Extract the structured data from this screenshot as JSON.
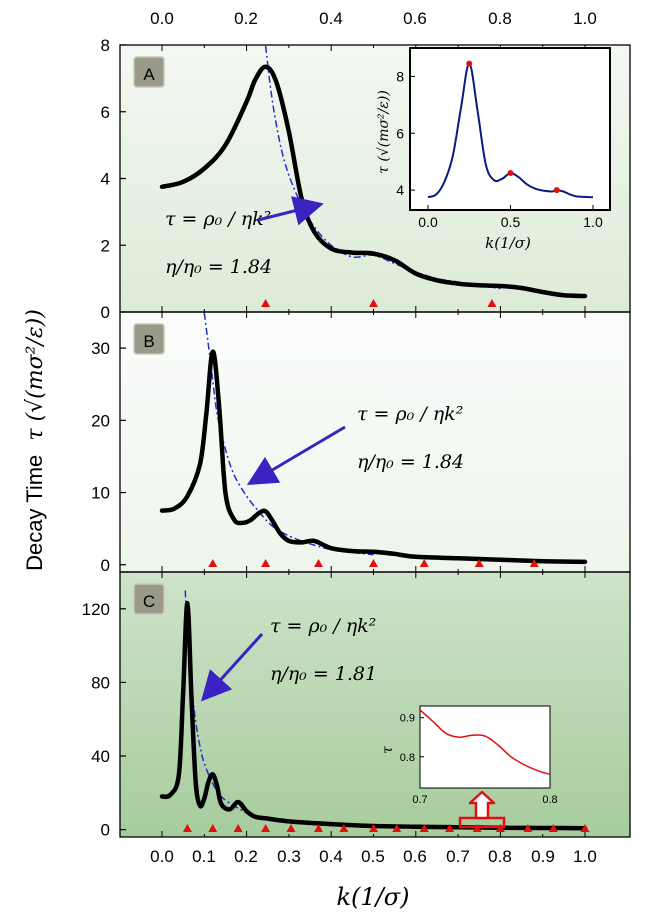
{
  "figure": {
    "ylabel": "Decay Time",
    "ylabel_math": "τ (√(mσ²/ε))",
    "xlabel": "k(1/σ)",
    "top_xticks": [
      "0.0",
      "0.2",
      "0.4",
      "0.6",
      "0.8",
      "1.0"
    ],
    "bottom_xticks": [
      "0.0",
      "0.1",
      "0.2",
      "0.3",
      "0.4",
      "0.5",
      "0.6",
      "0.7",
      "0.8",
      "0.9",
      "1.0"
    ]
  },
  "colors": {
    "curve": "#000000",
    "fit": "#1f2fd0",
    "arrow": "#3a23c0",
    "marker": "#e01010",
    "inset_curve": "#0a1a80",
    "inset_c_curve": "#e01010",
    "badge_bg": "#9a9a8a",
    "badge_text": "#f5b800",
    "panel_a_bg": "#e9f2e6",
    "panel_b_bg": "#f7faf6",
    "panel_c_bg": "#b5d4ae"
  },
  "chart_data": [
    {
      "panel": "A",
      "type": "line",
      "xlim": [
        -0.1,
        1.05
      ],
      "ylim": [
        0,
        8
      ],
      "yticks": [
        "0",
        "2",
        "4",
        "6",
        "8"
      ],
      "ytick_values": [
        0,
        2,
        4,
        6,
        8
      ],
      "series": [
        {
          "role": "curve",
          "x": [
            0.0,
            0.05,
            0.1,
            0.15,
            0.2,
            0.22,
            0.245,
            0.27,
            0.3,
            0.33,
            0.36,
            0.4,
            0.45,
            0.5,
            0.55,
            0.6,
            0.65,
            0.7,
            0.75,
            0.8,
            0.85,
            0.9,
            0.95,
            1.0
          ],
          "y": [
            3.75,
            3.9,
            4.3,
            5.0,
            6.3,
            6.95,
            7.35,
            6.9,
            5.4,
            3.4,
            2.4,
            1.9,
            1.78,
            1.75,
            1.55,
            1.15,
            0.95,
            0.85,
            0.8,
            0.78,
            0.72,
            0.6,
            0.5,
            0.48
          ]
        },
        {
          "role": "fit",
          "x": [
            0.245,
            0.26,
            0.28,
            0.3,
            0.33,
            0.36,
            0.4,
            0.45,
            0.5,
            0.55,
            0.6,
            0.65,
            0.7,
            0.75,
            0.8
          ],
          "y": [
            8.3,
            6.4,
            5.0,
            4.1,
            3.2,
            2.55,
            2.0,
            1.65,
            1.7,
            1.45,
            1.2,
            1.0,
            0.9,
            0.8,
            0.7
          ]
        }
      ],
      "markers_x": [
        0.245,
        0.5,
        0.78
      ],
      "annotation": {
        "formula": "τ = ρ₀ / ηk²",
        "ratio": "η/η₀ = 1.84"
      },
      "badge": "A",
      "inset": {
        "x": [
          0.0,
          0.05,
          0.1,
          0.15,
          0.2,
          0.25,
          0.3,
          0.35,
          0.4,
          0.45,
          0.5,
          0.55,
          0.6,
          0.65,
          0.7,
          0.75,
          0.78,
          0.82,
          0.86,
          0.9,
          0.95,
          1.0
        ],
        "y": [
          3.75,
          3.85,
          4.3,
          5.2,
          6.9,
          8.45,
          6.8,
          4.9,
          4.35,
          4.4,
          4.6,
          4.45,
          4.2,
          4.05,
          3.98,
          3.95,
          4.0,
          3.95,
          3.85,
          3.78,
          3.76,
          3.75
        ],
        "markers": [
          [
            0.25,
            8.45
          ],
          [
            0.5,
            4.6
          ],
          [
            0.78,
            4.0
          ]
        ],
        "xlim": [
          -0.1,
          1.1
        ],
        "ylim": [
          3.3,
          9.0
        ],
        "xticks": [
          "0.0",
          "0.5",
          "1.0"
        ],
        "xtick_values": [
          0,
          0.5,
          1.0
        ],
        "yticks": [
          "4",
          "6",
          "8"
        ],
        "ytick_values": [
          4,
          6,
          8
        ],
        "ylabel": "τ (√(mσ²/ε))",
        "xlabel": "k(1/σ)"
      }
    },
    {
      "panel": "B",
      "type": "line",
      "xlim": [
        -0.1,
        1.05
      ],
      "ylim": [
        -1,
        35
      ],
      "yticks": [
        "0",
        "10",
        "20",
        "30"
      ],
      "ytick_values": [
        0,
        10,
        20,
        30
      ],
      "series": [
        {
          "role": "curve",
          "x": [
            0.0,
            0.03,
            0.06,
            0.09,
            0.105,
            0.12,
            0.135,
            0.15,
            0.17,
            0.19,
            0.21,
            0.23,
            0.245,
            0.26,
            0.28,
            0.3,
            0.33,
            0.36,
            0.4,
            0.45,
            0.5,
            0.55,
            0.6,
            0.7,
            0.8,
            0.9,
            1.0
          ],
          "y": [
            7.5,
            7.8,
            9.5,
            14,
            21,
            29.5,
            22,
            10,
            6.3,
            5.8,
            6.2,
            7.2,
            7.4,
            6.2,
            4.3,
            3.3,
            3.1,
            3.3,
            2.3,
            1.9,
            1.8,
            1.5,
            1.1,
            0.9,
            0.7,
            0.5,
            0.4
          ]
        },
        {
          "role": "fit",
          "x": [
            0.1,
            0.115,
            0.13,
            0.15,
            0.17,
            0.2,
            0.23,
            0.26,
            0.3,
            0.35,
            0.4,
            0.45,
            0.5
          ],
          "y": [
            35,
            28,
            21,
            16,
            12.5,
            9.5,
            7.3,
            5.4,
            4.0,
            2.9,
            2.1,
            1.7,
            1.4
          ]
        }
      ],
      "markers_x": [
        0.12,
        0.245,
        0.37,
        0.5,
        0.62,
        0.75,
        0.88
      ],
      "annotation": {
        "formula": "τ = ρ₀ / ηk²",
        "ratio": "η/η₀ = 1.84"
      },
      "badge": "B"
    },
    {
      "panel": "C",
      "type": "line",
      "xlim": [
        -0.1,
        1.05
      ],
      "ylim": [
        -4,
        140
      ],
      "yticks": [
        "0",
        "40",
        "80",
        "120"
      ],
      "ytick_values": [
        0,
        40,
        80,
        120
      ],
      "series": [
        {
          "role": "curve",
          "x": [
            0.0,
            0.02,
            0.04,
            0.05,
            0.06,
            0.07,
            0.08,
            0.09,
            0.1,
            0.11,
            0.12,
            0.13,
            0.14,
            0.16,
            0.18,
            0.2,
            0.22,
            0.25,
            0.3,
            0.4,
            0.5,
            0.6,
            0.7,
            0.8,
            0.9,
            1.0
          ],
          "y": [
            18,
            19,
            30,
            75,
            123,
            70,
            25,
            13,
            17,
            26,
            30,
            24,
            14,
            11,
            15,
            10,
            7,
            6,
            4.5,
            3,
            2,
            1.6,
            1.3,
            1.0,
            0.9,
            0.8
          ]
        },
        {
          "role": "fit",
          "x": [
            0.055,
            0.06,
            0.07,
            0.08,
            0.09,
            0.1,
            0.12,
            0.14,
            0.17,
            0.2,
            0.25,
            0.3,
            0.4,
            0.5
          ],
          "y": [
            130,
            105,
            78,
            58,
            45,
            36,
            25,
            18,
            13,
            9.5,
            6,
            4.3,
            2.6,
            1.8
          ]
        }
      ],
      "markers_x": [
        0.06,
        0.12,
        0.18,
        0.245,
        0.305,
        0.37,
        0.43,
        0.5,
        0.555,
        0.62,
        0.68,
        0.745,
        0.8,
        0.865,
        0.925,
        1.0
      ],
      "annotation": {
        "formula": "τ = ρ₀ / ηk²",
        "ratio": "η/η₀ = 1.81"
      },
      "badge": "C",
      "inset": {
        "x": [
          0.7,
          0.71,
          0.72,
          0.73,
          0.74,
          0.75,
          0.76,
          0.77,
          0.78,
          0.79,
          0.8
        ],
        "y": [
          0.92,
          0.89,
          0.86,
          0.85,
          0.855,
          0.853,
          0.83,
          0.8,
          0.78,
          0.765,
          0.755
        ],
        "xlim": [
          0.7,
          0.8
        ],
        "ylim": [
          0.72,
          0.93
        ],
        "xticks": [
          "0.7",
          "0.8"
        ],
        "xtick_values": [
          0.7,
          0.8
        ],
        "yticks": [
          "0.9",
          "0.8"
        ],
        "ytick_values": [
          0.9,
          0.8
        ],
        "ylabel": "τ"
      }
    }
  ]
}
